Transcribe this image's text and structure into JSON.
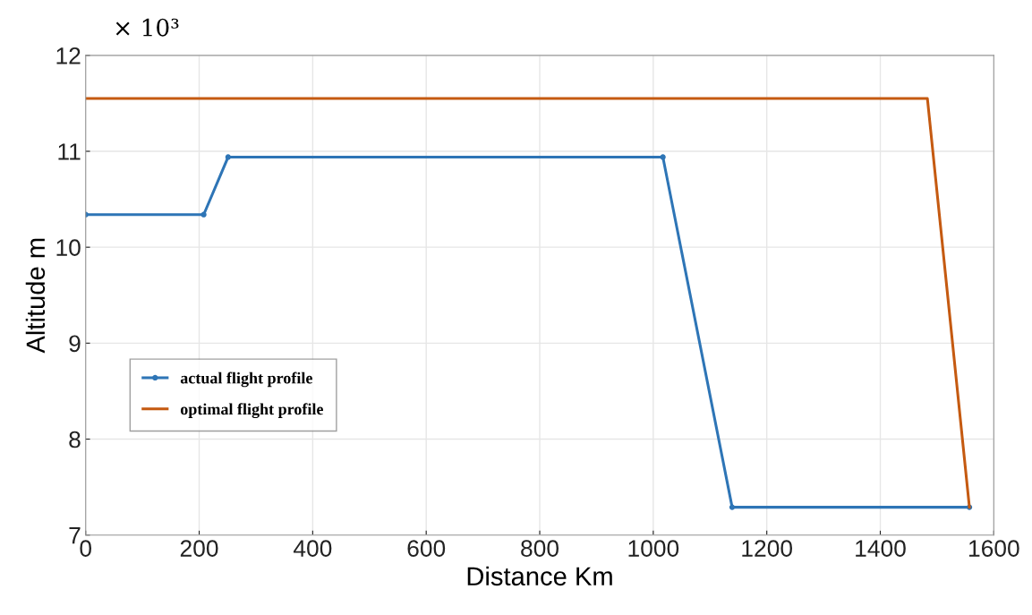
{
  "chart_data": {
    "type": "line",
    "xlabel": "Distance Km",
    "ylabel": "Altitude m",
    "annotations": [
      "× 10³"
    ],
    "xlim": [
      0,
      1600
    ],
    "xticks": [
      0,
      200,
      400,
      600,
      800,
      1000,
      1200,
      1400,
      1600
    ],
    "ylim": [
      7,
      12
    ],
    "yticks": [
      7,
      8,
      9,
      10,
      11,
      12
    ],
    "grid": true,
    "legend": "left",
    "series": [
      {
        "name": "actual flight profile",
        "color": "#2e75b6",
        "marker": "circle",
        "x": [
          0,
          208,
          251,
          1017,
          1139,
          1557
        ],
        "values": [
          10.34,
          10.34,
          10.94,
          10.94,
          7.29,
          7.29
        ]
      },
      {
        "name": "optimal flight profile",
        "color": "#c55a11",
        "marker": "none",
        "x": [
          0,
          1483,
          1557
        ],
        "values": [
          11.55,
          11.55,
          7.29
        ]
      }
    ]
  }
}
